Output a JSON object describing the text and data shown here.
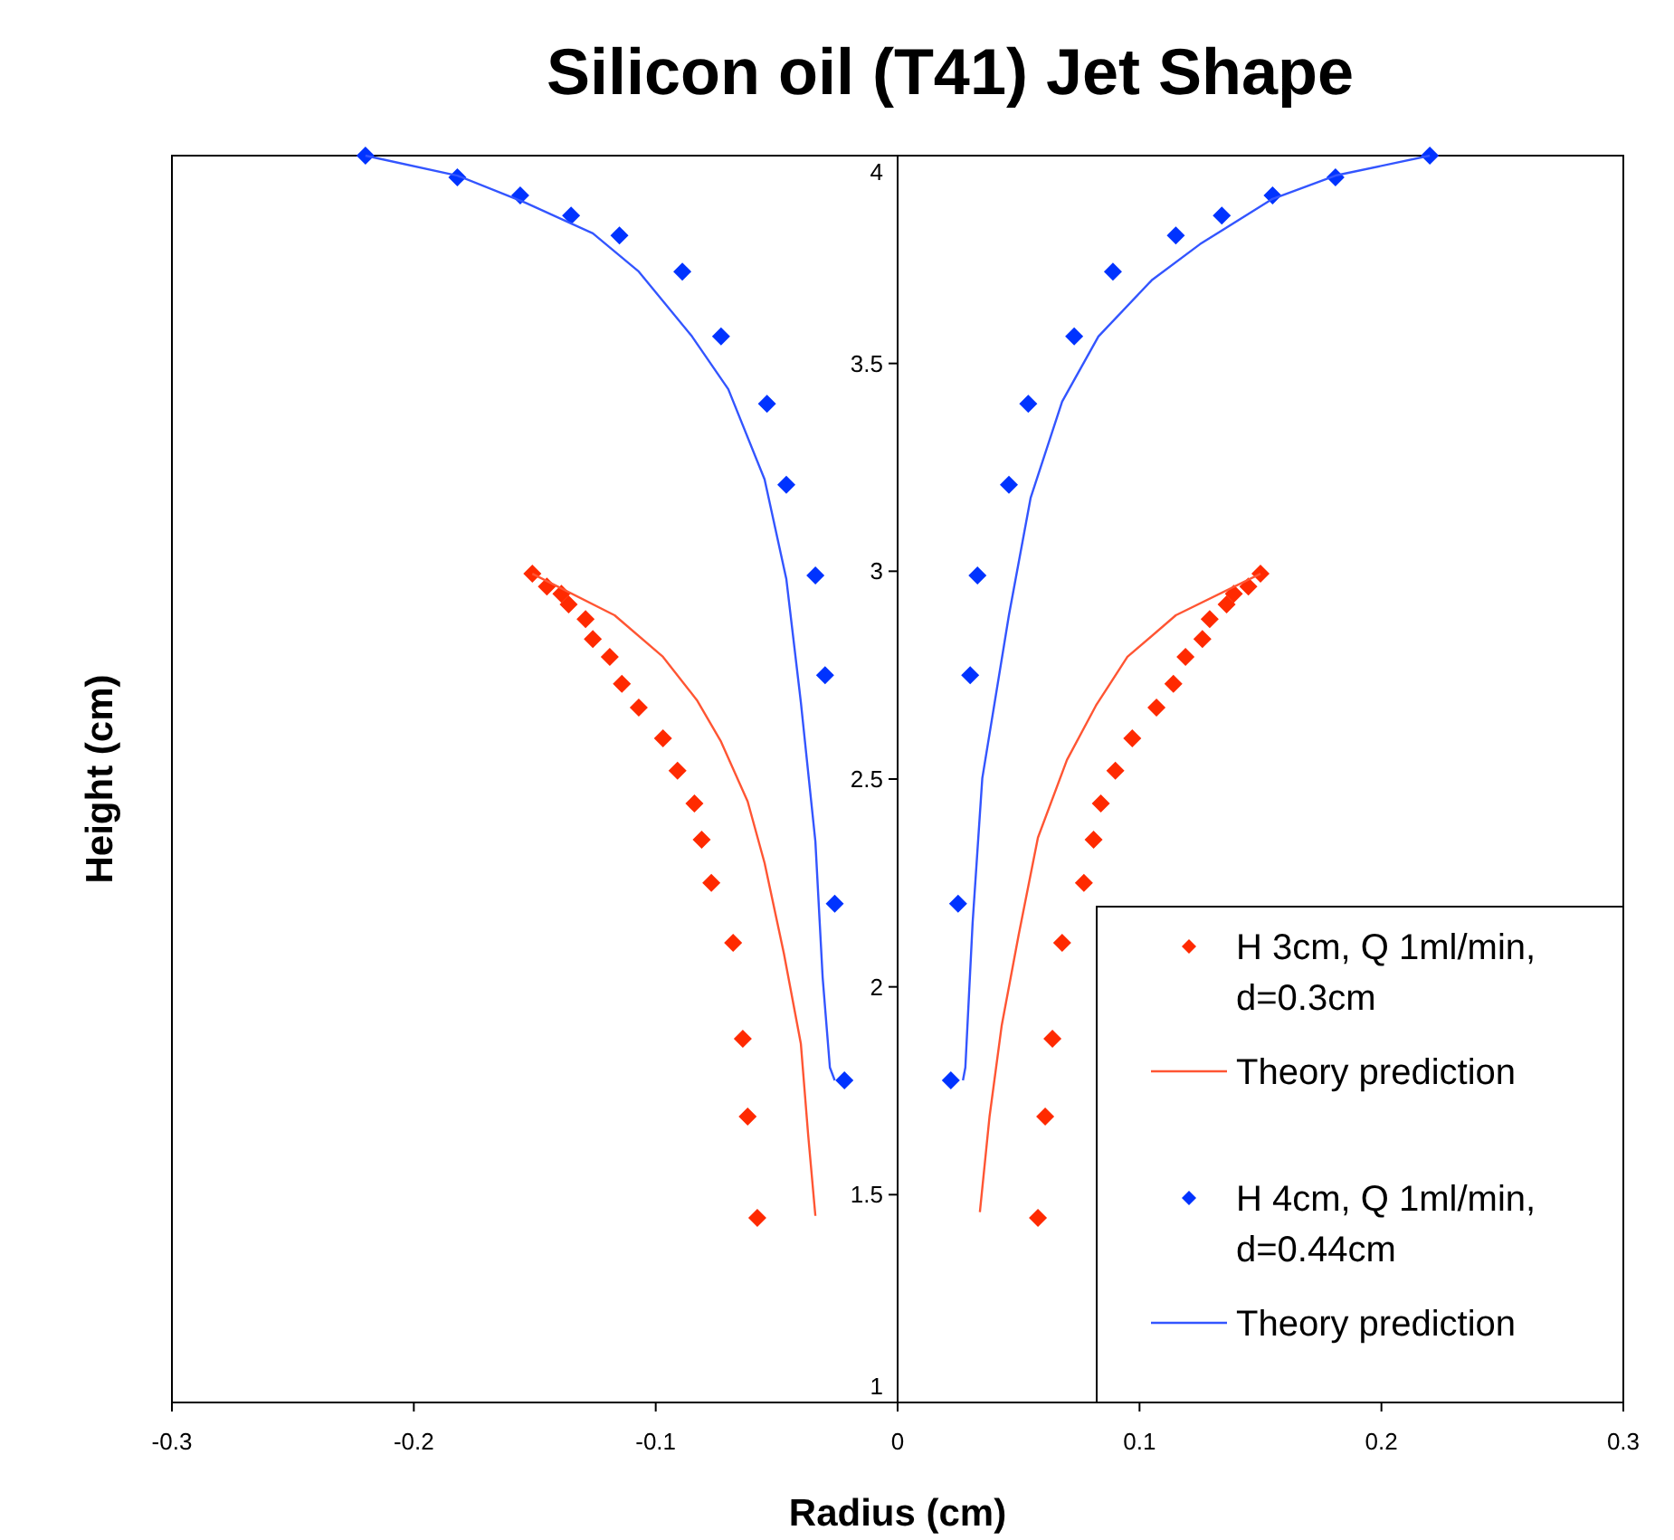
{
  "chart_data": {
    "type": "scatter",
    "title": "Silicon oil (T41) Jet Shape",
    "xlabel": "Radius (cm)",
    "ylabel": "Height (cm)",
    "xlim": [
      -0.3,
      0.3
    ],
    "xticks": [
      -0.3,
      -0.2,
      -0.1,
      0,
      0.1,
      0.2,
      0.3
    ],
    "ylim": [
      1,
      4
    ],
    "yticks": [
      1,
      1.5,
      2,
      2.5,
      3,
      3.5,
      4
    ],
    "grid": false,
    "legend": "bottom right",
    "series": [
      {
        "name": "H 3cm, Q 1ml/min, d=0.3cm",
        "marker": "diamond",
        "color": "#ff2a00",
        "x": [
          -0.151,
          -0.145,
          -0.139,
          -0.136,
          -0.129,
          -0.126,
          -0.119,
          -0.114,
          -0.107,
          -0.097,
          -0.091,
          -0.084,
          -0.081,
          -0.077,
          -0.068,
          -0.064,
          -0.062,
          -0.058,
          0.15,
          0.145,
          0.139,
          0.136,
          0.129,
          0.126,
          0.119,
          0.114,
          0.107,
          0.097,
          0.09,
          0.084,
          0.081,
          0.077,
          0.068,
          0.064,
          0.061,
          0.058
        ],
        "values": [
          2.994,
          2.963,
          2.946,
          2.92,
          2.885,
          2.837,
          2.794,
          2.729,
          2.672,
          2.598,
          2.52,
          2.441,
          2.354,
          2.25,
          2.106,
          1.875,
          1.688,
          1.444,
          2.994,
          2.963,
          2.946,
          2.92,
          2.885,
          2.837,
          2.794,
          2.729,
          2.672,
          2.598,
          2.52,
          2.441,
          2.354,
          2.25,
          2.106,
          1.875,
          1.688,
          1.444
        ]
      },
      {
        "name": "Theory prediction",
        "type": "line",
        "color": "#ff5533",
        "x": [
          -0.151,
          -0.117,
          -0.097,
          -0.083,
          -0.073,
          -0.062,
          -0.055,
          -0.047,
          -0.04,
          -0.037,
          -0.034,
          null,
          0.034,
          0.038,
          0.043,
          0.05,
          0.058,
          0.07,
          0.082,
          0.095,
          0.115,
          0.15
        ],
        "values": [
          2.994,
          2.894,
          2.794,
          2.69,
          2.59,
          2.446,
          2.298,
          2.08,
          1.863,
          1.645,
          1.449,
          null,
          1.458,
          1.688,
          1.906,
          2.124,
          2.359,
          2.546,
          2.677,
          2.794,
          2.894,
          2.994
        ]
      },
      {
        "name": "H 4cm, Q 1ml/min, d=0.44cm",
        "marker": "diamond",
        "color": "#0033ff",
        "x": [
          -0.22,
          -0.182,
          -0.156,
          -0.135,
          -0.115,
          -0.089,
          -0.073,
          -0.054,
          -0.046,
          -0.034,
          -0.03,
          -0.026,
          -0.022,
          0.22,
          0.181,
          0.155,
          0.134,
          0.115,
          0.089,
          0.073,
          0.054,
          0.046,
          0.033,
          0.03,
          0.025,
          0.022
        ],
        "values": [
          4.0,
          3.948,
          3.904,
          3.856,
          3.808,
          3.721,
          3.565,
          3.403,
          3.208,
          2.99,
          2.75,
          2.2,
          1.775,
          4.0,
          3.948,
          3.904,
          3.856,
          3.808,
          3.721,
          3.565,
          3.403,
          3.208,
          2.99,
          2.75,
          2.2,
          1.775
        ]
      },
      {
        "name": "Theory prediction",
        "type": "line",
        "color": "#3355ff",
        "x": [
          -0.22,
          -0.182,
          -0.154,
          -0.126,
          -0.107,
          -0.085,
          -0.07,
          -0.055,
          -0.046,
          -0.04,
          -0.034,
          -0.031,
          -0.028,
          -0.026,
          null,
          0.027,
          0.028,
          0.031,
          0.035,
          0.046,
          0.055,
          0.068,
          0.083,
          0.105,
          0.125,
          0.155,
          0.181,
          0.22
        ],
        "values": [
          4.0,
          3.952,
          3.887,
          3.813,
          3.721,
          3.565,
          3.438,
          3.221,
          2.981,
          2.685,
          2.35,
          2.023,
          1.806,
          1.775,
          null,
          1.775,
          1.806,
          2.154,
          2.502,
          2.894,
          3.177,
          3.408,
          3.565,
          3.7,
          3.787,
          3.896,
          3.952,
          4.0
        ]
      }
    ]
  }
}
